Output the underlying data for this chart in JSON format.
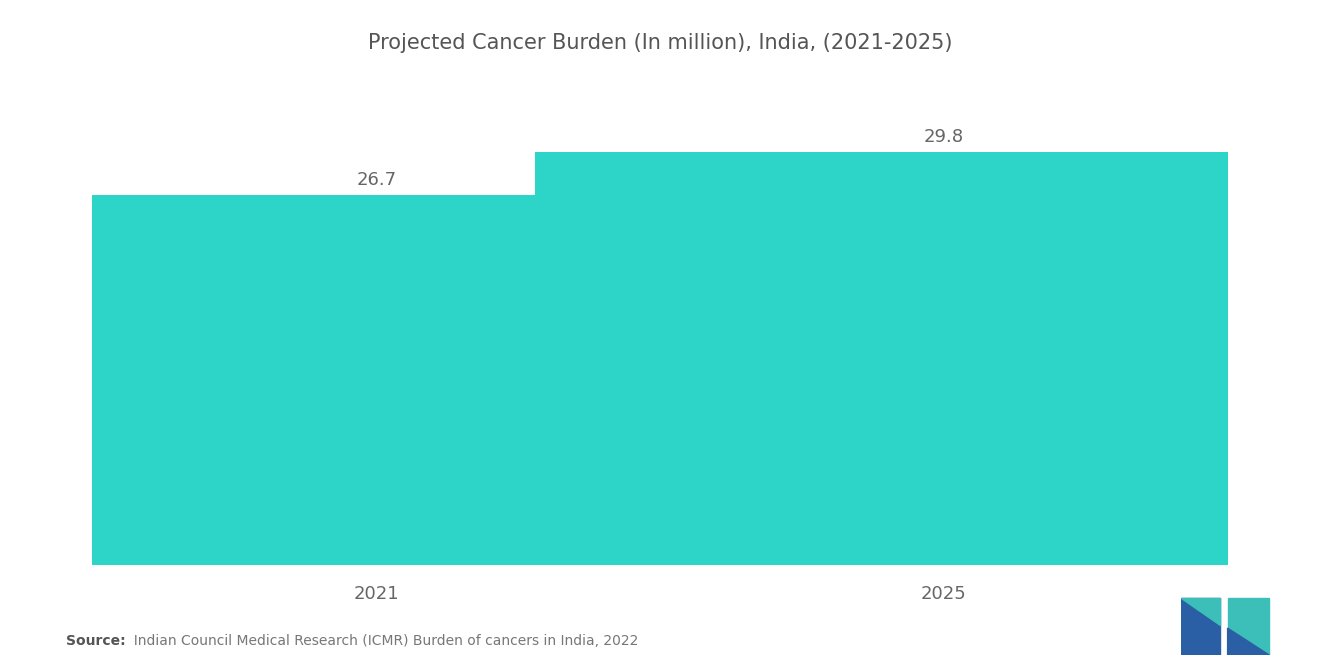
{
  "title": "Projected Cancer Burden (In million), India, (2021-2025)",
  "categories": [
    "2021",
    "2025"
  ],
  "values": [
    26.7,
    29.8
  ],
  "bar_color": "#2DD4C8",
  "background_color": "#ffffff",
  "title_fontsize": 15,
  "label_fontsize": 13,
  "value_fontsize": 13,
  "source_bold": "Source:",
  "source_text": "  Indian Council Medical Research (ICMR) Burden of cancers in India, 2022",
  "source_fontsize": 10,
  "ylim": [
    0,
    35
  ],
  "bar_width": 0.72,
  "bar_positions": [
    0.25,
    0.75
  ],
  "xlim": [
    0,
    1.0
  ]
}
